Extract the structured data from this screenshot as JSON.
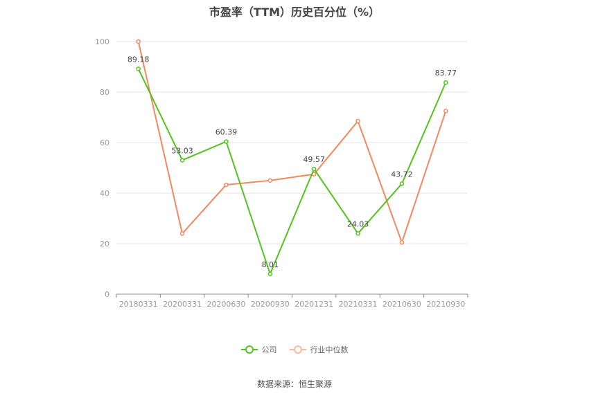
{
  "chart_data": {
    "type": "line",
    "title": "市盈率（TTM）历史百分位（%）",
    "categories": [
      "20180331",
      "20200331",
      "20200630",
      "20200930",
      "20201231",
      "20210331",
      "20210630",
      "20210930"
    ],
    "series": [
      {
        "name": "公司",
        "color": "#52c41a",
        "values": [
          89.18,
          53.03,
          60.39,
          8.01,
          49.57,
          24.03,
          43.72,
          83.77
        ],
        "labels": [
          "89.18",
          "53.03",
          "60.39",
          "8.01",
          "49.57",
          "24.03",
          "43.72",
          "83.77"
        ]
      },
      {
        "name": "行业中位数",
        "color": "#f4875e",
        "values": [
          100,
          24,
          43.3,
          45,
          47.5,
          68.5,
          20.5,
          72.5
        ]
      }
    ],
    "ylim": [
      0,
      100
    ],
    "yticks": [
      0,
      20,
      40,
      60,
      80,
      100
    ],
    "grid": true,
    "legend_position": "bottom"
  },
  "source": "数据来源：恒生聚源"
}
